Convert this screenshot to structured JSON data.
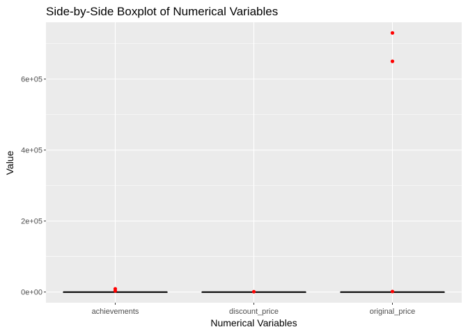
{
  "chart_data": {
    "type": "boxplot",
    "title": "Side-by-Side Boxplot of Numerical Variables",
    "xlabel": "Numerical Variables",
    "ylabel": "Value",
    "categories": [
      "achievements",
      "discount_price",
      "original_price"
    ],
    "ylim": [
      -30000,
      760000
    ],
    "yticks": [
      0,
      200000,
      400000,
      600000
    ],
    "ytick_labels": [
      "0e+00",
      "2e+05",
      "4e+05",
      "6e+05"
    ],
    "grid": true,
    "legend": "none",
    "boxes": [
      {
        "category": "achievements",
        "q1": 0,
        "median": 0,
        "q3": 0,
        "whisker_low": 0,
        "whisker_high": 0,
        "outliers": [
          9000,
          3000
        ]
      },
      {
        "category": "discount_price",
        "q1": 0,
        "median": 0,
        "q3": 0,
        "whisker_low": 0,
        "whisker_high": 0,
        "outliers": [
          1000
        ]
      },
      {
        "category": "original_price",
        "q1": 0,
        "median": 0,
        "q3": 0,
        "whisker_low": 0,
        "whisker_high": 0,
        "outliers": [
          730000,
          650000,
          1500
        ]
      }
    ],
    "colors": {
      "panel_background": "#ebebeb",
      "grid": "#ffffff",
      "box": "#000000",
      "outlier": "#ff0000"
    }
  }
}
